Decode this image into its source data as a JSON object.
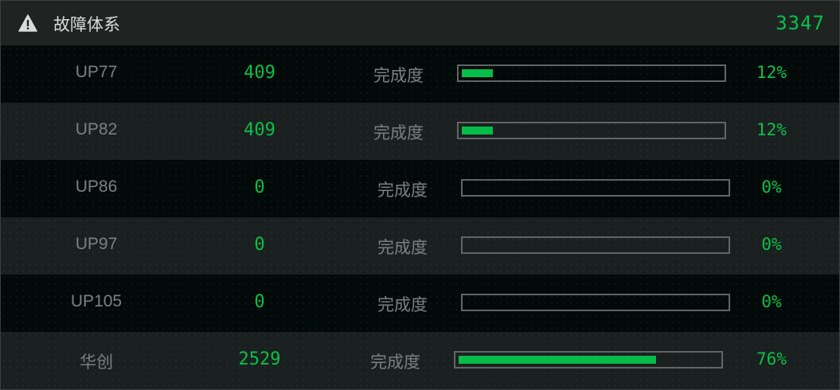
{
  "header": {
    "title": "故障体系",
    "total": "3347",
    "icon": "warning-triangle-icon"
  },
  "colors": {
    "accent": "#07bd49",
    "border": "#5f6665"
  },
  "rows": [
    {
      "name": "UP77",
      "value": "409",
      "label": "完成度",
      "percent": "12%",
      "progress": 12
    },
    {
      "name": "UP82",
      "value": "409",
      "label": "完成度",
      "percent": "12%",
      "progress": 12
    },
    {
      "name": "UP86",
      "value": "0",
      "label": "完成度",
      "percent": "0%",
      "progress": 0
    },
    {
      "name": "UP97",
      "value": "0",
      "label": "完成度",
      "percent": "0%",
      "progress": 0
    },
    {
      "name": "UP105",
      "value": "0",
      "label": "完成度",
      "percent": "0%",
      "progress": 0
    },
    {
      "name": "华创",
      "value": "2529",
      "label": "完成度",
      "percent": "76%",
      "progress": 76
    }
  ]
}
